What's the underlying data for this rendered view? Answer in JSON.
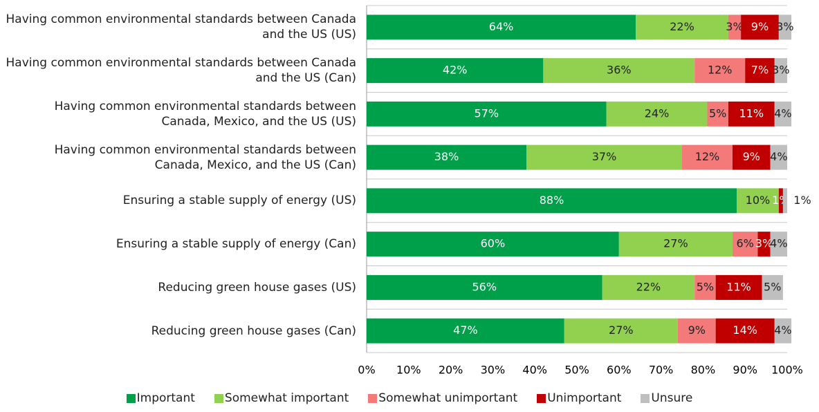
{
  "chart_data": {
    "type": "stacked_barh",
    "categories": [
      "Having common environmental standards between Canada and the US (US)",
      "Having common environmental standards between Canada and the US (Can)",
      "Having common environmental standards between Canada, Mexico, and the US (US)",
      "Having common environmental standards between Canada, Mexico, and the US (Can)",
      "Ensuring a stable supply of energy (US)",
      "Ensuring a stable supply of energy (Can)",
      "Reducing green house gases (US)",
      "Reducing green house gases (Can)"
    ],
    "series": [
      {
        "name": "Important",
        "color": "#00a04a",
        "label_color": "#ffffff",
        "values": [
          64,
          42,
          57,
          38,
          88,
          60,
          56,
          47
        ],
        "value_labels": [
          "64%",
          "42%",
          "57%",
          "38%",
          "88%",
          "60%",
          "56%",
          "47%"
        ]
      },
      {
        "name": "Somewhat important",
        "color": "#92d050",
        "label_color": "#222222",
        "values": [
          22,
          36,
          24,
          37,
          10,
          27,
          22,
          27
        ],
        "value_labels": [
          "22%",
          "36%",
          "24%",
          "37%",
          "10%",
          "27%",
          "22%",
          "27%"
        ]
      },
      {
        "name": "Somewhat unimportant",
        "color": "#f47a7a",
        "label_color": "#222222",
        "values": [
          3,
          12,
          5,
          12,
          null,
          6,
          5,
          9
        ],
        "value_labels": [
          "3%",
          "12%",
          "5%",
          "12%",
          null,
          "6%",
          "5%",
          "9%"
        ]
      },
      {
        "name": "Unimportant",
        "color": "#c00000",
        "label_color": "#ffffff",
        "values": [
          9,
          7,
          11,
          9,
          1,
          3,
          11,
          14
        ],
        "value_labels": [
          "9%",
          "7%",
          "11%",
          "9%",
          "1%",
          "3%",
          "11%",
          "14%"
        ]
      },
      {
        "name": "Unsure",
        "color": "#bfbfbf",
        "label_color": "#222222",
        "values": [
          3,
          3,
          4,
          4,
          1,
          4,
          5,
          4
        ],
        "value_labels": [
          "3%",
          "3%",
          "4%",
          "4%",
          "1%",
          "4%",
          "5%",
          "4%"
        ]
      }
    ],
    "xlim": [
      0,
      100
    ],
    "xticks": [
      {
        "value": 0,
        "label": "0%"
      },
      {
        "value": 10,
        "label": "10%"
      },
      {
        "value": 20,
        "label": "20%"
      },
      {
        "value": 30,
        "label": "30%"
      },
      {
        "value": 40,
        "label": "40%"
      },
      {
        "value": 50,
        "label": "50%"
      },
      {
        "value": 60,
        "label": "60%"
      },
      {
        "value": 70,
        "label": "70%"
      },
      {
        "value": 80,
        "label": "80%"
      },
      {
        "value": 90,
        "label": "90%"
      },
      {
        "value": 100,
        "label": "100%"
      }
    ],
    "legend": "bottom"
  }
}
